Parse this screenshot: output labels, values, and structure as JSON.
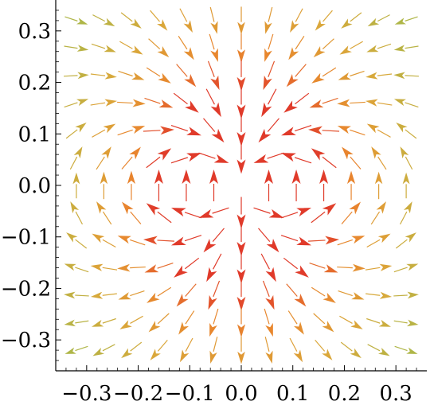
{
  "chart_data": {
    "type": "vector-field",
    "title": "",
    "xlabel": "",
    "ylabel": "",
    "xlim": [
      -0.36,
      0.36
    ],
    "ylim": [
      -0.36,
      0.36
    ],
    "grid": false,
    "legend": "none",
    "x_ticks": [
      {
        "value": -0.3,
        "label": "−0.3"
      },
      {
        "value": -0.2,
        "label": "−0.2"
      },
      {
        "value": -0.1,
        "label": "−0.1"
      },
      {
        "value": 0.0,
        "label": "0.0"
      },
      {
        "value": 0.1,
        "label": "0.1"
      },
      {
        "value": 0.2,
        "label": "0.2"
      },
      {
        "value": 0.3,
        "label": "0.3"
      }
    ],
    "y_ticks": [
      {
        "value": 0.3,
        "label": "0.3"
      },
      {
        "value": 0.2,
        "label": "0.2"
      },
      {
        "value": 0.1,
        "label": "0.1"
      },
      {
        "value": 0.0,
        "label": "0.0"
      },
      {
        "value": -0.1,
        "label": "−0.1"
      },
      {
        "value": -0.2,
        "label": "−0.2"
      },
      {
        "value": -0.3,
        "label": "−0.3"
      }
    ],
    "grid_points_x": [
      -0.32,
      -0.2667,
      -0.2133,
      -0.16,
      -0.1067,
      -0.0533,
      0.0,
      0.0533,
      0.1067,
      0.16,
      0.2133,
      0.2667,
      0.32
    ],
    "grid_points_y": [
      0.32,
      0.2667,
      0.2133,
      0.16,
      0.1067,
      0.0533,
      0.0,
      -0.0533,
      -0.1067,
      -0.16,
      -0.2133,
      -0.2667,
      -0.32
    ],
    "field": "point dipole at origin, moment pointing in -y direction",
    "color_scale": [
      "#4b2fc9",
      "#7a3fb8",
      "#6fbf8a",
      "#a8b84a",
      "#d9a83a",
      "#e8872e",
      "#e03a2a"
    ],
    "colors": {
      "axis": "#000000",
      "strong": "#e03a2a",
      "weak": "#4b2fc9"
    }
  }
}
